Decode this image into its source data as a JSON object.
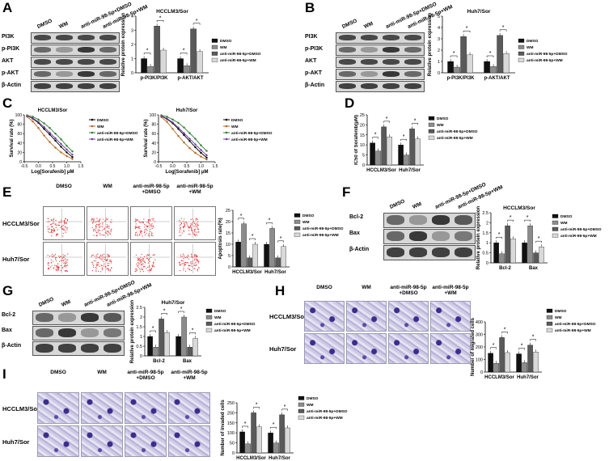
{
  "labels": {
    "A": "A",
    "B": "B",
    "C": "C",
    "D": "D",
    "E": "E",
    "F": "F",
    "G": "G",
    "H": "H",
    "I": "I"
  },
  "groups": [
    "DMSO",
    "WM",
    "anti-miR-98-5p+DMSO",
    "anti-miR-98-5p+WM"
  ],
  "groups_stacked": [
    [
      "DMSO",
      ""
    ],
    [
      "WM",
      ""
    ],
    [
      "anti-miR-98-5p",
      "+DMSO"
    ],
    [
      "anti-miR-98-5p",
      "+WM"
    ]
  ],
  "colors": {
    "DMSO": "#111111",
    "WM": "#8c8c8c",
    "anti_dmso": "#5a5a5a",
    "anti_wm": "#d9d9d9"
  },
  "panelA": {
    "rows": [
      "PI3K",
      "p-PI3K",
      "AKT",
      "p-AKT",
      "β-Actin"
    ],
    "lanes": [
      "DMSO",
      "WM",
      "anti-miR-98-5p+DMSO",
      "anti-miR-98-5p+WM"
    ]
  },
  "panelB": {
    "rows": [
      "PI3K",
      "p-PI3K",
      "AKT",
      "p-AKT",
      "β-Actin"
    ],
    "lanes": [
      "DMSO",
      "WM",
      "anti-miR-98-5p+DMSO",
      "anti-miR-98-5p+WM"
    ]
  },
  "panelF": {
    "rows": [
      "Bcl-2",
      "Bax",
      "β-Actin"
    ],
    "lanes": [
      "DMSO",
      "WM",
      "anti-miR-98-5p+DMSO",
      "anti-miR-98-5p+WM"
    ]
  },
  "panelG": {
    "rows": [
      "Bcl-2",
      "Bax",
      "β-Actin"
    ],
    "lanes": [
      "DMSO",
      "WM",
      "anti-miR-98-5p+DMSO",
      "anti-miR-98-5p+WM"
    ]
  },
  "panelE": {
    "rows": [
      "HCCLM3/Sor",
      "Huh7/Sor"
    ]
  },
  "panelH": {
    "rows": [
      "HCCLM3/Sor",
      "Huh7/Sor"
    ]
  },
  "panelI": {
    "rows": [
      "HCCLM3/Sor",
      "Huh7/Sor"
    ]
  },
  "chart_data": [
    {
      "id": "A",
      "type": "bar",
      "title": "HCCLM3/Sor",
      "ylabel": "Relative protein expression",
      "categories": [
        "p-PI3K/PI3K",
        "p-AKT/AKT"
      ],
      "ylim": [
        0,
        4
      ],
      "yticks": [
        0,
        1,
        2,
        3,
        4
      ],
      "series": [
        {
          "name": "DMSO",
          "values": [
            1.0,
            1.0
          ]
        },
        {
          "name": "WM",
          "values": [
            0.45,
            0.5
          ]
        },
        {
          "name": "anti-miR-98-5p+DMSO",
          "values": [
            3.3,
            3.1
          ]
        },
        {
          "name": "anti-miR-98-5p+WM",
          "values": [
            1.6,
            1.5
          ]
        }
      ],
      "legend": "right"
    },
    {
      "id": "B",
      "type": "bar",
      "title": "Huh7/Sor",
      "ylabel": "Relative protein expression",
      "categories": [
        "p-PI3K/PI3K",
        "p-AKT/AKT"
      ],
      "ylim": [
        0,
        5
      ],
      "yticks": [
        0,
        1,
        2,
        3,
        4,
        5
      ],
      "series": [
        {
          "name": "DMSO",
          "values": [
            1.0,
            1.0
          ]
        },
        {
          "name": "WM",
          "values": [
            0.5,
            0.55
          ]
        },
        {
          "name": "anti-miR-98-5p+DMSO",
          "values": [
            3.2,
            3.3
          ]
        },
        {
          "name": "anti-miR-98-5p+WM",
          "values": [
            1.6,
            1.7
          ]
        }
      ],
      "legend": "right"
    },
    {
      "id": "C1",
      "type": "line",
      "title": "HCCLM3/Sor",
      "xlabel": "Log[Sorafenib] μM",
      "ylabel": "Survival rate (%)",
      "xlim": [
        -0.5,
        1.5
      ],
      "ylim": [
        0,
        100
      ],
      "xticks": [
        -0.5,
        0.0,
        0.5,
        1.0,
        1.5
      ],
      "yticks": [
        0,
        20,
        40,
        60,
        80,
        100
      ],
      "x": [
        -0.4,
        -0.2,
        0.0,
        0.2,
        0.4,
        0.6,
        0.8,
        1.0,
        1.2
      ],
      "series": [
        {
          "name": "DMSO",
          "values": [
            98,
            92,
            83,
            70,
            58,
            45,
            32,
            20,
            10
          ]
        },
        {
          "name": "WM",
          "values": [
            96,
            86,
            72,
            56,
            42,
            30,
            20,
            12,
            6
          ]
        },
        {
          "name": "anti-miR-98-5p+DMSO",
          "values": [
            99,
            96,
            90,
            82,
            72,
            60,
            48,
            34,
            22
          ]
        },
        {
          "name": "anti-miR-98-5p+WM",
          "values": [
            98,
            93,
            85,
            74,
            62,
            50,
            38,
            26,
            15
          ]
        }
      ],
      "legend": "right"
    },
    {
      "id": "C2",
      "type": "line",
      "title": "Huh7/Sor",
      "xlabel": "Log[Sorafenib] μM",
      "ylabel": "Survival rate (%)",
      "xlim": [
        -0.5,
        1.5
      ],
      "ylim": [
        0,
        100
      ],
      "xticks": [
        -0.5,
        0.0,
        0.5,
        1.0,
        1.5
      ],
      "yticks": [
        0,
        20,
        40,
        60,
        80,
        100
      ],
      "x": [
        -0.4,
        -0.2,
        0.0,
        0.2,
        0.4,
        0.6,
        0.8,
        1.0,
        1.2
      ],
      "series": [
        {
          "name": "DMSO",
          "values": [
            97,
            91,
            82,
            70,
            57,
            44,
            31,
            19,
            9
          ]
        },
        {
          "name": "WM",
          "values": [
            95,
            85,
            70,
            55,
            41,
            29,
            19,
            11,
            5
          ]
        },
        {
          "name": "anti-miR-98-5p+DMSO",
          "values": [
            99,
            96,
            90,
            83,
            73,
            61,
            49,
            35,
            23
          ]
        },
        {
          "name": "anti-miR-98-5p+WM",
          "values": [
            98,
            92,
            84,
            73,
            61,
            49,
            37,
            25,
            14
          ]
        }
      ],
      "legend": "right"
    },
    {
      "id": "D",
      "type": "bar",
      "ylabel": "IC50 of Sorafenib(μM)",
      "categories": [
        "HCCLM3/Sor",
        "Huh7/Sor"
      ],
      "ylim": [
        0,
        25
      ],
      "yticks": [
        0,
        5,
        10,
        15,
        20,
        25
      ],
      "series": [
        {
          "name": "DMSO",
          "values": [
            11,
            10
          ]
        },
        {
          "name": "WM",
          "values": [
            7,
            5
          ]
        },
        {
          "name": "anti-miR-98-5p+DMSO",
          "values": [
            19,
            18
          ]
        },
        {
          "name": "anti-miR-98-5p+WM",
          "values": [
            14,
            13
          ]
        }
      ],
      "legend": "right"
    },
    {
      "id": "E",
      "type": "bar",
      "ylabel": "Apoptosis rate(%)",
      "categories": [
        "HCCLM3/Sor",
        "Huh7/Sor"
      ],
      "ylim": [
        0,
        25
      ],
      "yticks": [
        0,
        5,
        10,
        15,
        20,
        25
      ],
      "series": [
        {
          "name": "DMSO",
          "values": [
            11,
            10
          ]
        },
        {
          "name": "WM",
          "values": [
            19,
            17
          ]
        },
        {
          "name": "anti-miR-98-5p+DMSO",
          "values": [
            4,
            4
          ]
        },
        {
          "name": "anti-miR-98-5p+WM",
          "values": [
            10,
            9
          ]
        }
      ],
      "legend": "right"
    },
    {
      "id": "F",
      "type": "bar",
      "title": "HCCLM3/Sor",
      "ylabel": "Relative protein expression",
      "categories": [
        "Bcl-2",
        "Bax"
      ],
      "ylim": [
        0,
        2.5
      ],
      "yticks": [
        0.0,
        0.5,
        1.0,
        1.5,
        2.0,
        2.5
      ],
      "series": [
        {
          "name": "DMSO",
          "values": [
            1.0,
            1.0
          ]
        },
        {
          "name": "WM",
          "values": [
            0.45,
            1.85
          ]
        },
        {
          "name": "anti-miR-98-5p+DMSO",
          "values": [
            1.85,
            0.5
          ]
        },
        {
          "name": "anti-miR-98-5p+WM",
          "values": [
            1.2,
            0.8
          ]
        }
      ],
      "legend": "right"
    },
    {
      "id": "G",
      "type": "bar",
      "title": "Huh7/Sor",
      "ylabel": "Relative protein expression",
      "categories": [
        "Bcl-2",
        "Bax"
      ],
      "ylim": [
        0,
        2.5
      ],
      "yticks": [
        0.0,
        0.5,
        1.0,
        1.5,
        2.0,
        2.5
      ],
      "series": [
        {
          "name": "DMSO",
          "values": [
            1.0,
            1.0
          ]
        },
        {
          "name": "WM",
          "values": [
            0.45,
            2.0
          ]
        },
        {
          "name": "anti-miR-98-5p+DMSO",
          "values": [
            1.9,
            0.45
          ]
        },
        {
          "name": "anti-miR-98-5p+WM",
          "values": [
            1.2,
            0.9
          ]
        }
      ],
      "legend": "right"
    },
    {
      "id": "H",
      "type": "bar",
      "ylabel": "Number of migrated cells",
      "categories": [
        "HCCLM3/Sor",
        "Huh7/Sor"
      ],
      "ylim": [
        0,
        400
      ],
      "yticks": [
        0,
        100,
        200,
        300,
        400
      ],
      "series": [
        {
          "name": "DMSO",
          "values": [
            150,
            145
          ]
        },
        {
          "name": "WM",
          "values": [
            70,
            75
          ]
        },
        {
          "name": "anti-miR-98-5p+DMSO",
          "values": [
            275,
            215
          ]
        },
        {
          "name": "anti-miR-98-5p+WM",
          "values": [
            155,
            160
          ]
        }
      ],
      "legend": "right"
    },
    {
      "id": "I",
      "type": "bar",
      "ylabel": "Number of invaded cells",
      "categories": [
        "HCCLM3/Sor",
        "Huh7/Sor"
      ],
      "ylim": [
        0,
        250
      ],
      "yticks": [
        0,
        50,
        100,
        150,
        200,
        250
      ],
      "series": [
        {
          "name": "DMSO",
          "values": [
            105,
            100
          ]
        },
        {
          "name": "WM",
          "values": [
            45,
            50
          ]
        },
        {
          "name": "anti-miR-98-5p+DMSO",
          "values": [
            200,
            190
          ]
        },
        {
          "name": "anti-miR-98-5p+WM",
          "values": [
            130,
            125
          ]
        }
      ],
      "legend": "right"
    }
  ],
  "star": "*"
}
